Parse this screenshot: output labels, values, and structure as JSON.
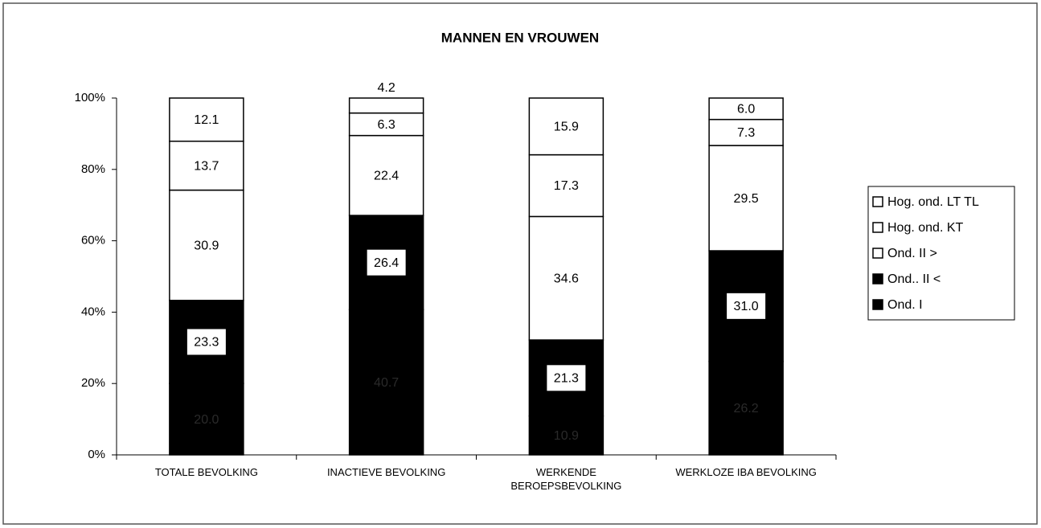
{
  "chart_data": {
    "type": "stacked_bar_100",
    "title": "MANNEN  EN  VROUWEN",
    "categories": [
      "TOTALE  BEVOLKING",
      "INACTIEVE BEVOLKING",
      "WERKENDE\nBEROEPSBEVOLKING",
      "WERKLOZE IBA BEVOLKING"
    ],
    "series": [
      {
        "name": "Ond.  I",
        "color": "#000000",
        "values": [
          20.0,
          40.7,
          10.9,
          26.2
        ],
        "value_labels": [
          "20.0",
          "40.7",
          "10.9",
          "26.2"
        ]
      },
      {
        "name": "Ond.. II <",
        "color": "#000000",
        "values": [
          23.3,
          26.4,
          21.3,
          31.0
        ],
        "value_labels": [
          "23.3",
          "26.4",
          "21.3",
          "31.0"
        ]
      },
      {
        "name": "Ond. II >",
        "color": "#ffffff",
        "values": [
          30.9,
          22.4,
          34.6,
          29.5
        ],
        "value_labels": [
          "30.9",
          "22.4",
          "34.6",
          "29.5"
        ]
      },
      {
        "name": "Hog. ond. KT",
        "color": "#ffffff",
        "values": [
          13.7,
          6.3,
          17.3,
          7.3
        ],
        "value_labels": [
          "13.7",
          "6.3",
          "17.3",
          "7.3"
        ]
      },
      {
        "name": "Hog. ond. LT TL",
        "color": "#ffffff",
        "values": [
          12.1,
          4.2,
          15.9,
          6.0
        ],
        "value_labels": [
          "12.1",
          "4.2",
          "15.9",
          "6.0"
        ]
      }
    ],
    "ylim": [
      0,
      100
    ],
    "yticks": [
      {
        "value": 0,
        "label": "0%"
      },
      {
        "value": 20,
        "label": "20%"
      },
      {
        "value": 40,
        "label": "40%"
      },
      {
        "value": 60,
        "label": "60%"
      },
      {
        "value": 80,
        "label": "80%"
      },
      {
        "value": 100,
        "label": "100%"
      }
    ],
    "legend": "right"
  }
}
